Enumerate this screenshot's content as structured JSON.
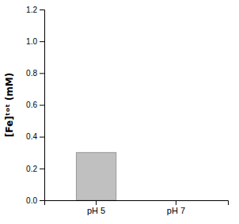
{
  "chart_data": {
    "type": "bar",
    "categories": [
      "pH 5",
      "pH 7"
    ],
    "values": [
      0.3,
      0.0
    ],
    "color": "#c0c0c0",
    "ylabel": "[Fe]ᵗᵒᵗ (mM)",
    "ylim": [
      0.0,
      1.2
    ],
    "yticks": [
      {
        "value": 0.0,
        "label": "0.0"
      },
      0.2,
      0.4,
      0.6,
      0.8,
      {
        "value": 1.0,
        "label": "1.0"
      },
      1.2
    ],
    "grid": false
  }
}
